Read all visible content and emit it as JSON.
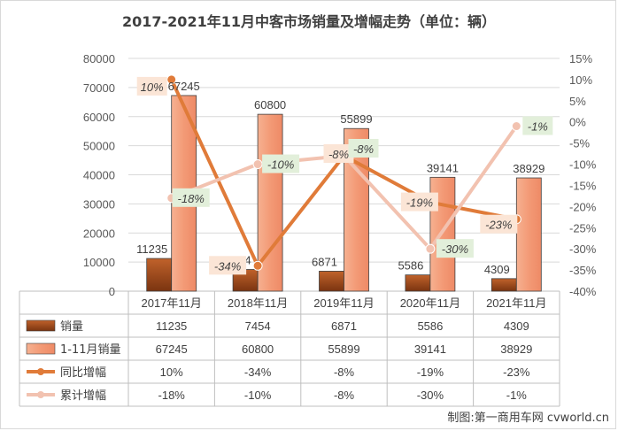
{
  "chart_data": {
    "type": "bar",
    "title": "2017-2021年11月中客市场销量及增幅走势（单位：辆）",
    "categories": [
      "2017年11月",
      "2018年11月",
      "2019年11月",
      "2020年11月",
      "2021年11月"
    ],
    "ylim": [
      0,
      80000
    ],
    "y_ticks": [
      "0",
      "10000",
      "20000",
      "30000",
      "40000",
      "50000",
      "60000",
      "70000",
      "80000"
    ],
    "y2lim": [
      -40,
      15
    ],
    "y2_ticks": [
      "-40%",
      "-35%",
      "-30%",
      "-25%",
      "-20%",
      "-15%",
      "-10%",
      "-5%",
      "0%",
      "5%",
      "10%",
      "15%"
    ],
    "grid": true,
    "legend": "data-table-bottom",
    "bar_series": [
      {
        "name": "销量",
        "color": "#a84d1a",
        "values": [
          11235,
          7454,
          6871,
          5586,
          4309
        ],
        "display": [
          "11235",
          "7454",
          "6871",
          "5586",
          "4309"
        ]
      },
      {
        "name": "1-11月销量",
        "color": "#f4a582",
        "values": [
          67245,
          60800,
          55899,
          39141,
          38929
        ],
        "display": [
          "67245",
          "60800",
          "55899",
          "39141",
          "38929"
        ]
      }
    ],
    "line_series": [
      {
        "name": "同比增幅",
        "color": "#e07b39",
        "values": [
          10,
          -34,
          -8,
          -19,
          -23
        ],
        "display": [
          "10%",
          "-34%",
          "-8%",
          "-19%",
          "-23%"
        ],
        "label_bg": "#fbe5d6"
      },
      {
        "name": "累计增幅",
        "color": "#f2c2b0",
        "values": [
          -18,
          -10,
          -8,
          -30,
          -1
        ],
        "display": [
          "-18%",
          "-10%",
          "-8%",
          "-30%",
          "-1%"
        ],
        "label_bg": "#e2efda"
      }
    ]
  },
  "credit": "制图:第一商用车网 cvworld.cn"
}
